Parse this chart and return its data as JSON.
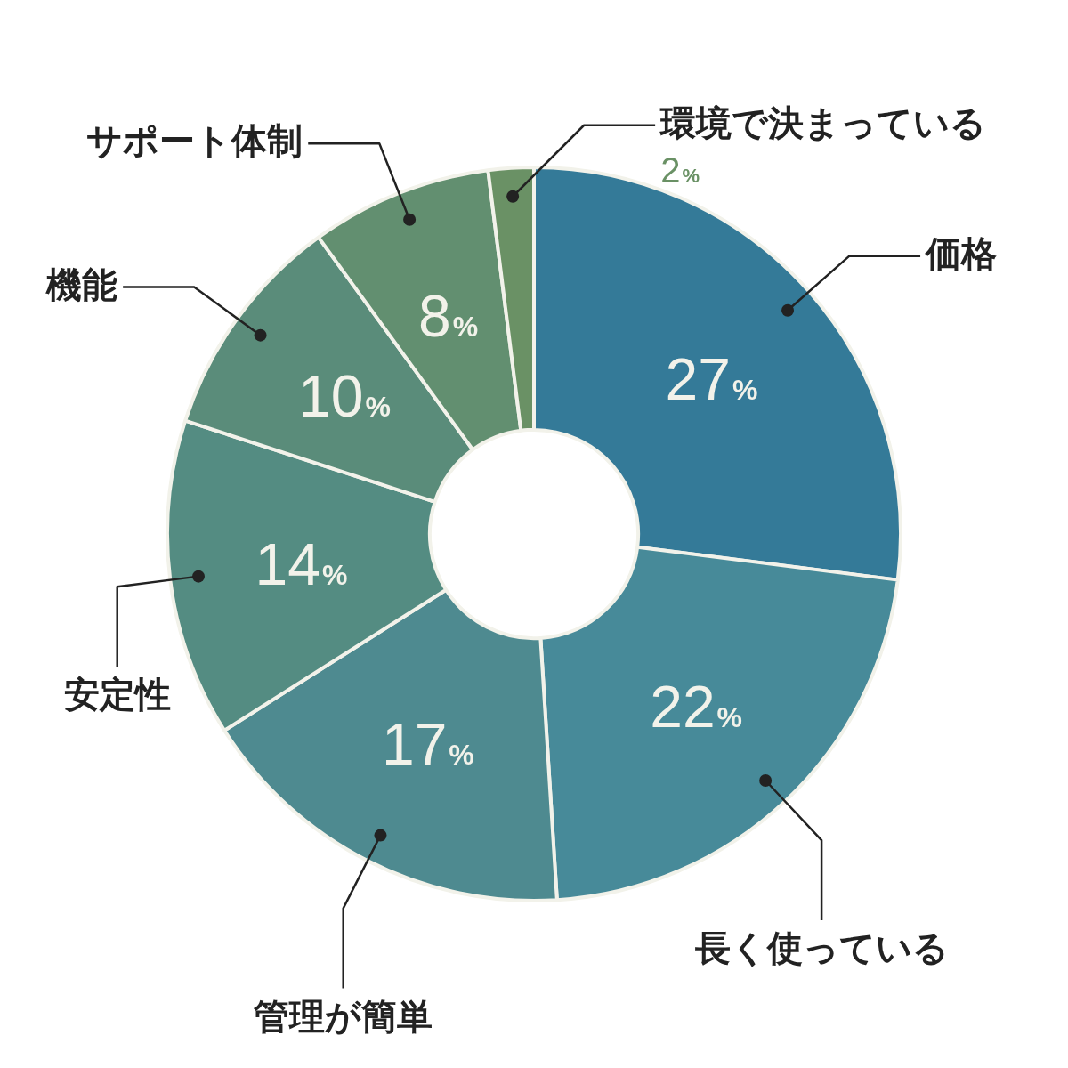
{
  "chart_data": {
    "type": "donut",
    "categories": [
      "価格",
      "長く使っている",
      "管理が簡単",
      "安定性",
      "機能",
      "サポート体制",
      "環境で決まっている"
    ],
    "values": [
      27,
      22,
      17,
      14,
      10,
      8,
      2
    ],
    "value_labels": [
      "27%",
      "22%",
      "17%",
      "14%",
      "10%",
      "8%",
      "2%"
    ],
    "colors": [
      "#347a98",
      "#478a99",
      "#4e8a90",
      "#548c82",
      "#5a8c7a",
      "#628f70",
      "#6a9165"
    ],
    "legend": false
  }
}
